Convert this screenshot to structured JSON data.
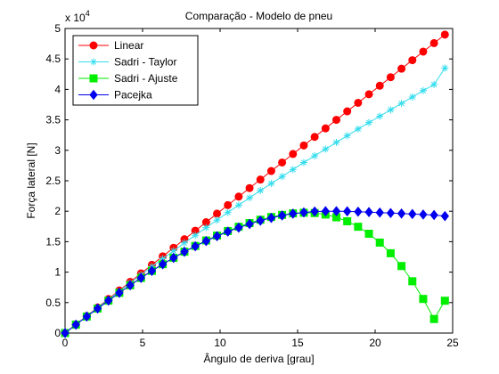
{
  "chart_data": {
    "type": "line",
    "title": "Comparação - Modelo de pneu",
    "xlabel": "Ângulo de deriva [grau]",
    "ylabel": "Força lateral [N]",
    "y_exponent_label": "x 10",
    "y_exponent_power": "4",
    "xlim": [
      0,
      25
    ],
    "ylim": [
      0,
      50000
    ],
    "xticks": [
      0,
      5,
      10,
      15,
      20,
      25
    ],
    "xtick_labels": [
      "0",
      "5",
      "10",
      "15",
      "20",
      "25"
    ],
    "yticks": [
      0,
      5000,
      10000,
      15000,
      20000,
      25000,
      30000,
      35000,
      40000,
      45000,
      50000
    ],
    "ytick_labels": [
      "0",
      "0.5",
      "1",
      "1.5",
      "2",
      "2.5",
      "3",
      "3.5",
      "4",
      "4.5",
      "5"
    ],
    "grid": false,
    "legend": "top-left",
    "x": [
      0,
      0.7,
      1.4,
      2.1,
      2.8,
      3.5,
      4.2,
      4.9,
      5.6,
      6.3,
      7.0,
      7.7,
      8.4,
      9.1,
      9.8,
      10.5,
      11.2,
      11.9,
      12.6,
      13.3,
      14.0,
      14.7,
      15.4,
      16.1,
      16.8,
      17.5,
      18.2,
      18.9,
      19.6,
      20.3,
      21.0,
      21.7,
      22.4,
      23.1,
      23.8,
      24.5
    ],
    "series": [
      {
        "name": "Linear",
        "color": "#ff0000",
        "marker": "circle",
        "values": [
          0,
          1400,
          2800,
          4200,
          5600,
          7000,
          8400,
          9800,
          11200,
          12600,
          14000,
          15400,
          16800,
          18200,
          19600,
          21000,
          22400,
          23800,
          25200,
          26600,
          28000,
          29400,
          30800,
          32200,
          33600,
          35000,
          36400,
          37800,
          39200,
          40600,
          42000,
          43400,
          44800,
          46200,
          47600,
          49000
        ]
      },
      {
        "name": "Sadri - Taylor",
        "color": "#33ddee",
        "marker": "star",
        "values": [
          0,
          1380,
          2760,
          4130,
          5500,
          6860,
          8220,
          9560,
          10900,
          12200,
          13500,
          14800,
          16050,
          17300,
          18550,
          19800,
          21000,
          22200,
          23400,
          24550,
          25700,
          26850,
          28000,
          29100,
          30200,
          31300,
          32400,
          33500,
          34550,
          35600,
          36650,
          37700,
          38750,
          39800,
          40800,
          43500
        ]
      },
      {
        "name": "Sadri - Ajuste",
        "color": "#00ee00",
        "marker": "square",
        "values": [
          0,
          1370,
          2700,
          4020,
          5320,
          6600,
          7840,
          9040,
          10200,
          11300,
          12350,
          13350,
          14300,
          15200,
          16000,
          16750,
          17450,
          18050,
          18600,
          19050,
          19400,
          19650,
          19750,
          19700,
          19450,
          19000,
          18350,
          17450,
          16300,
          14850,
          13100,
          11000,
          8500,
          5600,
          2300,
          5300
        ]
      },
      {
        "name": "Pacejka",
        "color": "#0000ee",
        "marker": "diamond",
        "values": [
          0,
          1370,
          2710,
          4030,
          5330,
          6600,
          7840,
          9050,
          10200,
          11300,
          12350,
          13350,
          14250,
          15100,
          15900,
          16650,
          17300,
          17900,
          18450,
          18900,
          19300,
          19600,
          19800,
          19950,
          20000,
          20000,
          19980,
          19920,
          19850,
          19780,
          19700,
          19620,
          19540,
          19460,
          19380,
          19200
        ]
      }
    ]
  }
}
